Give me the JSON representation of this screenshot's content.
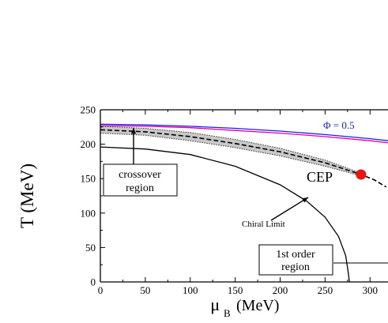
{
  "chart_data": {
    "type": "line",
    "xlabel": "μ",
    "xlabel_sub": "B",
    "xlabel_unit": "(MeV)",
    "ylabel": "T (MeV)",
    "xlim": [
      0,
      320
    ],
    "ylim": [
      0,
      250
    ],
    "x_ticks": [
      0,
      50,
      100,
      150,
      200,
      250,
      300
    ],
    "y_ticks": [
      0,
      50,
      100,
      150,
      200,
      250
    ],
    "grid": false,
    "colors": {
      "blue": "#1a1aff",
      "magenta": "#e0009a",
      "black": "#000000",
      "cep": "#ee1111",
      "band_fill": "#c8c8c8"
    },
    "series": [
      {
        "key": "phi_blue",
        "color": "#1a1aff",
        "points": [
          [
            0,
            229
          ],
          [
            50,
            228
          ],
          [
            100,
            226
          ],
          [
            150,
            223
          ],
          [
            200,
            219
          ],
          [
            250,
            214
          ],
          [
            300,
            208
          ],
          [
            320,
            205
          ]
        ]
      },
      {
        "key": "phi_magenta",
        "color": "#e0009a",
        "points": [
          [
            0,
            227
          ],
          [
            50,
            226
          ],
          [
            100,
            224
          ],
          [
            150,
            220
          ],
          [
            200,
            216
          ],
          [
            250,
            211
          ],
          [
            300,
            205
          ],
          [
            320,
            202
          ]
        ]
      },
      {
        "key": "crossover_center",
        "color": "#000000",
        "dashed": true,
        "points": [
          [
            0,
            221
          ],
          [
            50,
            218
          ],
          [
            100,
            211
          ],
          [
            150,
            201
          ],
          [
            200,
            189
          ],
          [
            250,
            173
          ],
          [
            290,
            156
          ],
          [
            305,
            148
          ],
          [
            318,
            138
          ]
        ]
      },
      {
        "key": "chiral_limit",
        "color": "#000000",
        "points": [
          [
            0,
            196
          ],
          [
            50,
            193
          ],
          [
            100,
            185
          ],
          [
            150,
            168
          ],
          [
            200,
            141
          ],
          [
            230,
            117
          ],
          [
            250,
            94
          ],
          [
            265,
            66
          ],
          [
            273,
            38
          ],
          [
            276,
            12
          ],
          [
            277,
            0
          ]
        ]
      }
    ],
    "crossover_band": {
      "upper": [
        [
          0,
          226
        ],
        [
          50,
          223
        ],
        [
          100,
          217
        ],
        [
          150,
          207
        ],
        [
          200,
          194
        ],
        [
          250,
          177
        ],
        [
          290,
          158
        ]
      ],
      "lower": [
        [
          0,
          216
        ],
        [
          50,
          213
        ],
        [
          100,
          205
        ],
        [
          150,
          195
        ],
        [
          200,
          183
        ],
        [
          250,
          168
        ],
        [
          290,
          154
        ]
      ]
    },
    "cep": {
      "x": 290,
      "y": 156
    },
    "annotations": {
      "phi": "Φ = 0.5",
      "cep_label": "CEP",
      "chiral_limit": "Chiral Limit",
      "crossover": [
        "crossover",
        "region"
      ],
      "first_order": [
        "1st order",
        "region"
      ]
    }
  }
}
